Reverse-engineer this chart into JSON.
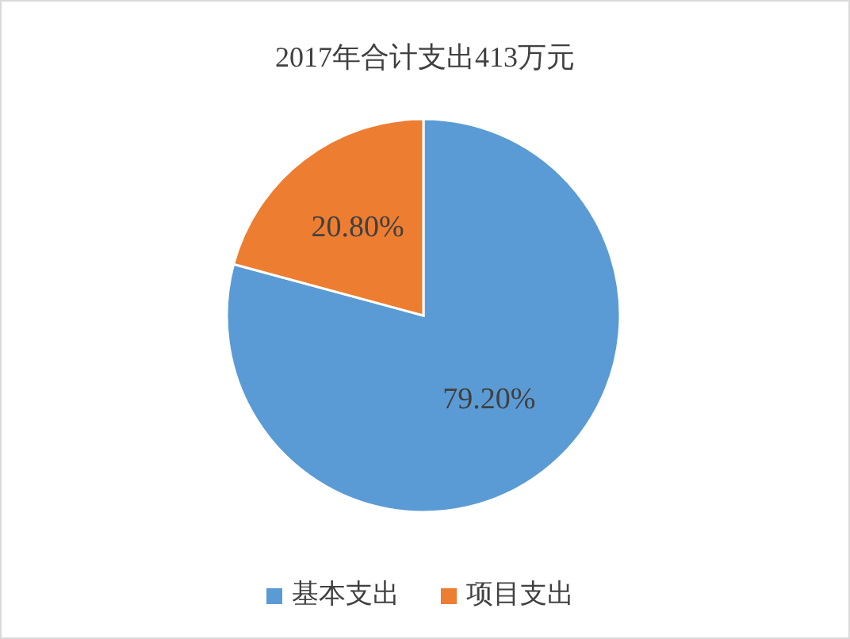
{
  "chart_data": {
    "type": "pie",
    "title": "2017年合计支出413万元",
    "categories": [
      "基本支出",
      "项目支出"
    ],
    "values": [
      79.2,
      20.8
    ],
    "colors": [
      "#5b9bd5",
      "#ed7d31"
    ],
    "value_labels": [
      "79.20%",
      "20.80%"
    ],
    "legend": "bottom"
  }
}
